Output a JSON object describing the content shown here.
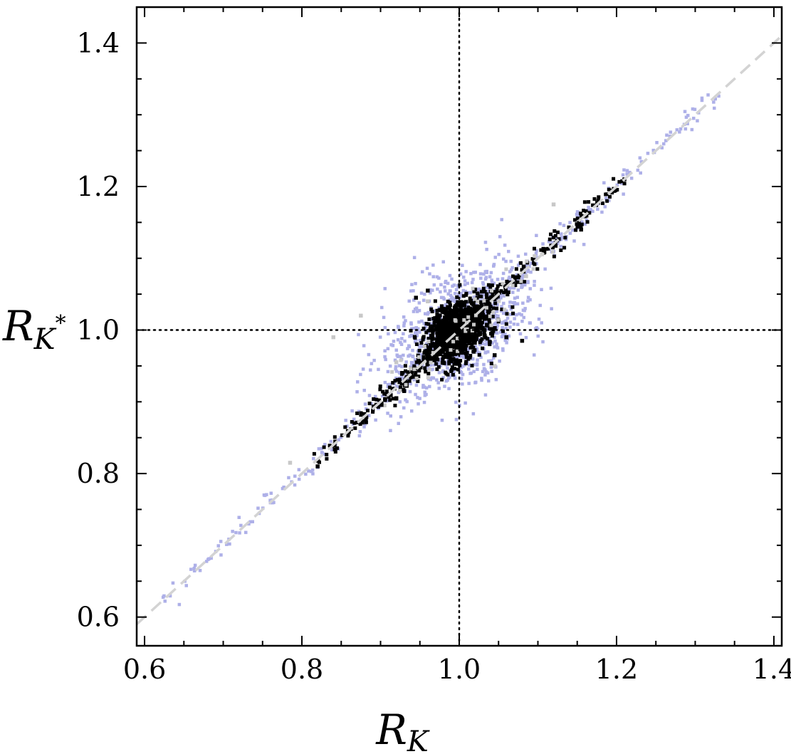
{
  "chart_data": {
    "type": "scatter",
    "title": "",
    "xlabel": {
      "main": "R",
      "sub": "K",
      "sup": ""
    },
    "ylabel": {
      "main": "R",
      "sub": "K",
      "sup": "*"
    },
    "xlim": [
      0.59,
      1.41
    ],
    "ylim": [
      0.56,
      1.45
    ],
    "xticks": [
      0.6,
      0.8,
      1.0,
      1.2,
      1.4
    ],
    "xtick_labels": [
      "0.6",
      "0.8",
      "1.0",
      "1.2",
      "1.4"
    ],
    "yticks": [
      0.6,
      0.8,
      1.0,
      1.2,
      1.4
    ],
    "ytick_labels": [
      "0.6",
      "0.8",
      "1.0",
      "1.2",
      "1.4"
    ],
    "grid": false,
    "reference_lines": {
      "vertical_x": 1.0,
      "horizontal_y": 1.0,
      "style": "dotted",
      "diagonal": {
        "slope": 1,
        "intercept": 0,
        "style": "dashed",
        "color": "#d3d3d3"
      }
    },
    "colors": {
      "gray_points": "#c8c8c8",
      "lavender_points": "#aeb0e8",
      "black_points": "#000000",
      "frame": "#000000"
    },
    "series": [
      {
        "color_key": "lavender_points",
        "distribution": "cluster around (1.0, 1.0) with spread ~0.03 plus points along the diagonal",
        "cluster_center": [
          1.0,
          1.0
        ],
        "cluster_spread": 0.035,
        "diagonal_range": [
          0.62,
          1.33
        ],
        "count": 1400
      },
      {
        "color_key": "gray_points",
        "distribution": "sparse points near the cluster and the diagonal",
        "points": [
          [
            0.84,
            0.99
          ],
          [
            0.875,
            1.02
          ],
          [
            1.12,
            1.175
          ],
          [
            0.785,
            0.815
          ],
          [
            0.96,
            1.04
          ],
          [
            1.045,
            0.95
          ],
          [
            0.905,
            0.895
          ],
          [
            1.085,
            1.075
          ],
          [
            0.92,
            0.955
          ],
          [
            1.06,
            1.05
          ]
        ],
        "count": 60
      },
      {
        "color_key": "black_points",
        "distribution": "dense core at (1.0, 1.0) with spread ~0.015 plus points along the diagonal",
        "cluster_center": [
          1.0,
          1.0
        ],
        "cluster_spread": 0.016,
        "diagonal_range": [
          0.82,
          1.21
        ],
        "outliers": [
          [
            0.945,
            1.045
          ],
          [
            1.08,
            0.985
          ],
          [
            1.06,
            0.99
          ],
          [
            0.92,
            0.905
          ],
          [
            0.93,
            0.915
          ],
          [
            0.82,
            0.81
          ],
          [
            1.155,
            1.14
          ],
          [
            1.21,
            1.21
          ],
          [
            0.96,
            1.055
          ],
          [
            1.045,
            0.965
          ]
        ],
        "count": 1600
      }
    ]
  }
}
